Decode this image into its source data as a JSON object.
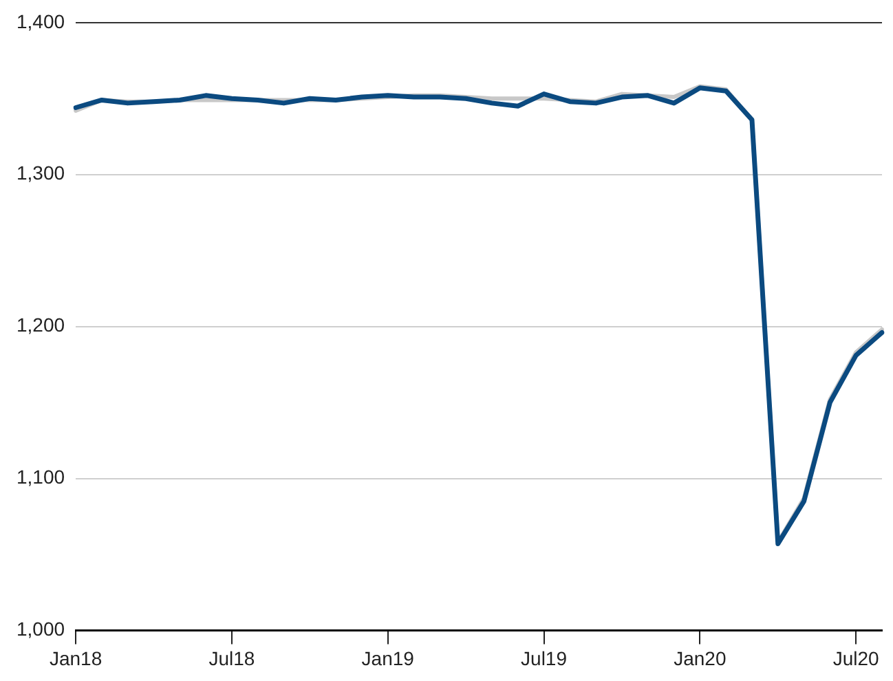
{
  "chart_data": {
    "type": "line",
    "categories": [
      "Jan18",
      null,
      null,
      null,
      null,
      null,
      "Jul18",
      null,
      null,
      null,
      null,
      null,
      "Jan19",
      null,
      null,
      null,
      null,
      null,
      "Jul19",
      null,
      null,
      null,
      null,
      null,
      "Jan20",
      null,
      null,
      null,
      null,
      null,
      "Jul20",
      null
    ],
    "series": [
      {
        "color": "#0b4a80",
        "values": [
          1344,
          1349,
          1347,
          1348,
          1349,
          1352,
          1350,
          1349,
          1347,
          1350,
          1349,
          1351,
          1352,
          1351,
          1351,
          1350,
          1347,
          1345,
          1353,
          1348,
          1347,
          1351,
          1352,
          1347,
          1357,
          1355,
          1336,
          1057,
          1085,
          1150,
          1181,
          1196
        ]
      },
      {
        "color": "#c8c8c8",
        "values": [
          1342,
          1349,
          1348,
          1348,
          1349,
          1349,
          1349,
          1349,
          1349,
          1349,
          1349,
          1350,
          1351,
          1352,
          1352,
          1351,
          1350,
          1350,
          1350,
          1349,
          1348,
          1353,
          1352,
          1351,
          1358,
          1356,
          1336,
          1058,
          1087,
          1152,
          1183,
          1198
        ]
      }
    ],
    "ylim": [
      1000,
      1400
    ],
    "yticks": [
      {
        "value": 1000,
        "label": "1,000"
      },
      {
        "value": 1100,
        "label": "1,100"
      },
      {
        "value": 1200,
        "label": "1,200"
      },
      {
        "value": 1300,
        "label": "1,300"
      },
      {
        "value": 1400,
        "label": "1,400"
      }
    ],
    "grid": "y",
    "legend": false,
    "marker": "none",
    "line_style": "solid"
  }
}
